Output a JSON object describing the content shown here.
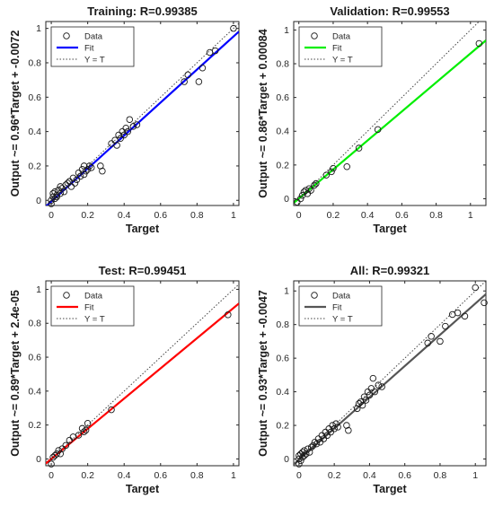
{
  "chart_data": [
    {
      "type": "scatter",
      "title": "Training: R=0.99385",
      "xlabel": "Target",
      "ylabel": "Output ~= 0.96*Target + -0.0072",
      "xlim": [
        -0.03,
        1.03
      ],
      "ylim": [
        -0.03,
        1.04
      ],
      "xticks": [
        "0",
        "0.2",
        "0.4",
        "0.6",
        "0.8",
        "1"
      ],
      "yticks": [
        "0",
        "0.2",
        "0.4",
        "0.6",
        "0.8",
        "1"
      ],
      "fit": {
        "slope": 0.96,
        "intercept": -0.0072,
        "color": "#0000ff"
      },
      "legend": [
        "Data",
        "Fit",
        "Y = T"
      ],
      "points": [
        [
          0.0,
          -0.02
        ],
        [
          0.0,
          0.0
        ],
        [
          0.01,
          0.02
        ],
        [
          0.01,
          0.04
        ],
        [
          0.02,
          0.01
        ],
        [
          0.02,
          0.05
        ],
        [
          0.03,
          0.03
        ],
        [
          0.03,
          0.02
        ],
        [
          0.04,
          0.06
        ],
        [
          0.05,
          0.04
        ],
        [
          0.05,
          0.08
        ],
        [
          0.06,
          0.07
        ],
        [
          0.07,
          0.05
        ],
        [
          0.08,
          0.09
        ],
        [
          0.09,
          0.1
        ],
        [
          0.1,
          0.11
        ],
        [
          0.11,
          0.08
        ],
        [
          0.12,
          0.13
        ],
        [
          0.13,
          0.1
        ],
        [
          0.14,
          0.12
        ],
        [
          0.15,
          0.16
        ],
        [
          0.16,
          0.14
        ],
        [
          0.17,
          0.18
        ],
        [
          0.18,
          0.15
        ],
        [
          0.18,
          0.2
        ],
        [
          0.19,
          0.17
        ],
        [
          0.2,
          0.18
        ],
        [
          0.21,
          0.2
        ],
        [
          0.22,
          0.19
        ],
        [
          0.27,
          0.2
        ],
        [
          0.28,
          0.17
        ],
        [
          0.33,
          0.33
        ],
        [
          0.35,
          0.35
        ],
        [
          0.36,
          0.32
        ],
        [
          0.37,
          0.38
        ],
        [
          0.38,
          0.36
        ],
        [
          0.39,
          0.4
        ],
        [
          0.4,
          0.38
        ],
        [
          0.41,
          0.42
        ],
        [
          0.42,
          0.4
        ],
        [
          0.43,
          0.47
        ],
        [
          0.45,
          0.43
        ],
        [
          0.47,
          0.44
        ],
        [
          0.73,
          0.69
        ],
        [
          0.75,
          0.73
        ],
        [
          0.81,
          0.69
        ],
        [
          0.83,
          0.77
        ],
        [
          0.87,
          0.86
        ],
        [
          0.9,
          0.87
        ],
        [
          1.0,
          1.0
        ]
      ]
    },
    {
      "type": "scatter",
      "title": "Validation: R=0.99553",
      "xlabel": "Target",
      "ylabel": "Output ~= 0.86*Target + 0.00084",
      "xlim": [
        -0.03,
        1.09
      ],
      "ylim": [
        -0.04,
        1.05
      ],
      "xticks": [
        "0",
        "0.2",
        "0.4",
        "0.6",
        "0.8",
        "1"
      ],
      "yticks": [
        "0",
        "0.2",
        "0.4",
        "0.6",
        "0.8",
        "1"
      ],
      "fit": {
        "slope": 0.86,
        "intercept": 0.00084,
        "color": "#00ee00"
      },
      "legend": [
        "Data",
        "Fit",
        "Y = T"
      ],
      "points": [
        [
          -0.01,
          -0.02
        ],
        [
          0.01,
          0.0
        ],
        [
          0.02,
          0.02
        ],
        [
          0.03,
          0.04
        ],
        [
          0.04,
          0.05
        ],
        [
          0.05,
          0.03
        ],
        [
          0.06,
          0.06
        ],
        [
          0.07,
          0.05
        ],
        [
          0.09,
          0.08
        ],
        [
          0.1,
          0.09
        ],
        [
          0.16,
          0.14
        ],
        [
          0.19,
          0.16
        ],
        [
          0.2,
          0.18
        ],
        [
          0.28,
          0.19
        ],
        [
          0.35,
          0.3
        ],
        [
          0.46,
          0.41
        ],
        [
          1.05,
          0.92
        ]
      ]
    },
    {
      "type": "scatter",
      "title": "Test: R=0.99451",
      "xlabel": "Target",
      "ylabel": "Output ~= 0.89*Target + 2.4e-05",
      "xlim": [
        -0.03,
        1.03
      ],
      "ylim": [
        -0.04,
        1.05
      ],
      "xticks": [
        "0",
        "0.2",
        "0.4",
        "0.6",
        "0.8",
        "1"
      ],
      "yticks": [
        "0",
        "0.2",
        "0.4",
        "0.6",
        "0.8",
        "1"
      ],
      "fit": {
        "slope": 0.89,
        "intercept": 2.4e-05,
        "color": "#ff0000"
      },
      "legend": [
        "Data",
        "Fit",
        "Y = T"
      ],
      "points": [
        [
          0.0,
          -0.03
        ],
        [
          0.01,
          0.01
        ],
        [
          0.02,
          0.02
        ],
        [
          0.03,
          0.03
        ],
        [
          0.04,
          0.05
        ],
        [
          0.05,
          0.03
        ],
        [
          0.06,
          0.06
        ],
        [
          0.08,
          0.08
        ],
        [
          0.1,
          0.11
        ],
        [
          0.12,
          0.13
        ],
        [
          0.15,
          0.14
        ],
        [
          0.17,
          0.18
        ],
        [
          0.18,
          0.16
        ],
        [
          0.19,
          0.17
        ],
        [
          0.2,
          0.21
        ],
        [
          0.33,
          0.29
        ],
        [
          0.97,
          0.85
        ]
      ]
    },
    {
      "type": "scatter",
      "title": "All: R=0.99321",
      "xlabel": "Target",
      "ylabel": "Output ~= 0.93*Target + -0.0047",
      "xlim": [
        -0.03,
        1.06
      ],
      "ylim": [
        -0.04,
        1.06
      ],
      "xticks": [
        "0",
        "0.2",
        "0.4",
        "0.6",
        "0.8",
        "1"
      ],
      "yticks": [
        "0",
        "0.2",
        "0.4",
        "0.6",
        "0.8",
        "1"
      ],
      "fit": {
        "slope": 0.93,
        "intercept": -0.0047,
        "color": "#555555"
      },
      "legend": [
        "Data",
        "Fit",
        "Y = T"
      ],
      "points": [
        [
          0.0,
          -0.03
        ],
        [
          0.0,
          0.0
        ],
        [
          0.0,
          0.02
        ],
        [
          0.01,
          -0.01
        ],
        [
          0.01,
          0.03
        ],
        [
          0.02,
          0.01
        ],
        [
          0.02,
          0.04
        ],
        [
          0.03,
          0.02
        ],
        [
          0.03,
          0.05
        ],
        [
          0.04,
          0.03
        ],
        [
          0.05,
          0.06
        ],
        [
          0.06,
          0.04
        ],
        [
          0.07,
          0.07
        ],
        [
          0.08,
          0.08
        ],
        [
          0.09,
          0.1
        ],
        [
          0.1,
          0.09
        ],
        [
          0.11,
          0.12
        ],
        [
          0.12,
          0.1
        ],
        [
          0.13,
          0.14
        ],
        [
          0.14,
          0.12
        ],
        [
          0.15,
          0.16
        ],
        [
          0.16,
          0.14
        ],
        [
          0.17,
          0.18
        ],
        [
          0.18,
          0.16
        ],
        [
          0.19,
          0.2
        ],
        [
          0.2,
          0.18
        ],
        [
          0.21,
          0.21
        ],
        [
          0.22,
          0.19
        ],
        [
          0.27,
          0.2
        ],
        [
          0.28,
          0.17
        ],
        [
          0.33,
          0.3
        ],
        [
          0.34,
          0.33
        ],
        [
          0.35,
          0.34
        ],
        [
          0.36,
          0.32
        ],
        [
          0.37,
          0.37
        ],
        [
          0.38,
          0.35
        ],
        [
          0.39,
          0.4
        ],
        [
          0.4,
          0.38
        ],
        [
          0.41,
          0.42
        ],
        [
          0.42,
          0.48
        ],
        [
          0.43,
          0.4
        ],
        [
          0.45,
          0.44
        ],
        [
          0.47,
          0.43
        ],
        [
          0.73,
          0.69
        ],
        [
          0.75,
          0.73
        ],
        [
          0.8,
          0.7
        ],
        [
          0.83,
          0.79
        ],
        [
          0.87,
          0.86
        ],
        [
          0.9,
          0.87
        ],
        [
          0.94,
          0.85
        ],
        [
          1.0,
          1.02
        ],
        [
          1.05,
          0.93
        ]
      ]
    }
  ]
}
